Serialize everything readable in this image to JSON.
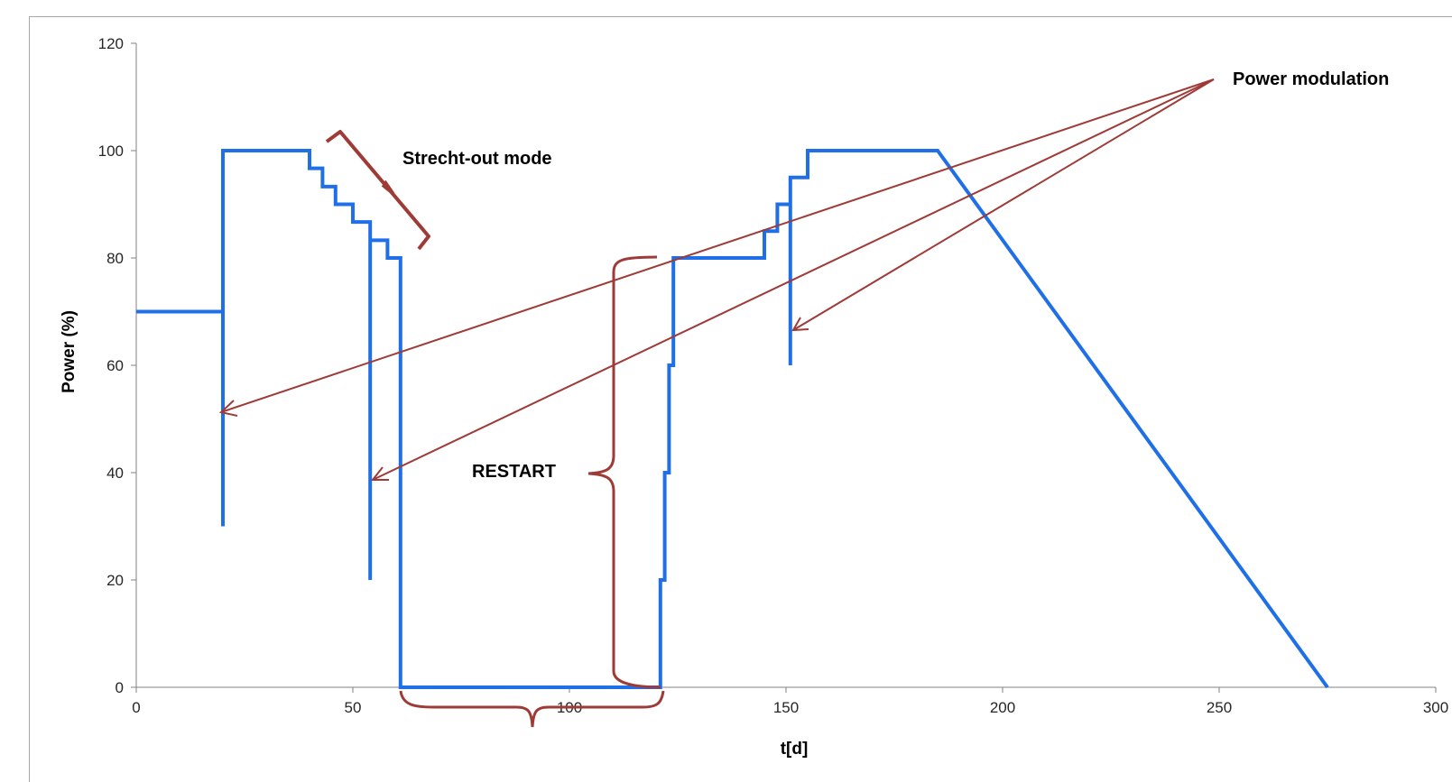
{
  "chart_data": {
    "type": "line",
    "title": "",
    "xlabel": "t[d]",
    "ylabel": "Power (%)",
    "xlim": [
      0,
      300
    ],
    "ylim": [
      0,
      120
    ],
    "xticks": [
      0,
      50,
      100,
      150,
      200,
      250,
      300
    ],
    "yticks": [
      0,
      20,
      40,
      60,
      80,
      100,
      120
    ],
    "grid": false,
    "legend": "none",
    "series": [
      {
        "color": "#1f6fe8",
        "x": [
          0,
          20,
          20,
          20,
          20,
          20,
          40,
          40,
          43,
          43,
          46,
          46,
          50,
          50,
          54,
          54,
          54,
          54,
          58,
          58,
          61,
          61,
          121,
          121,
          122,
          122,
          123,
          123,
          124,
          124,
          125,
          125,
          145,
          145,
          148,
          148,
          151,
          151,
          151,
          151,
          155,
          155,
          185,
          275
        ],
        "y": [
          70,
          70,
          30,
          70,
          100,
          100,
          100,
          96.7,
          96.7,
          93.3,
          93.3,
          90,
          90,
          86.7,
          86.7,
          20,
          86.7,
          83.3,
          83.3,
          80,
          80,
          0,
          0,
          20,
          20,
          40,
          40,
          60,
          60,
          80,
          80,
          80,
          80,
          85,
          85,
          90,
          90,
          60,
          90,
          95,
          95,
          100,
          100,
          0
        ]
      }
    ],
    "annotations": {
      "stretch_out": "Strecht-out mode",
      "restart": "RESTART",
      "power_modulation": "Power modulation"
    },
    "annotation_color": "#a0403c"
  }
}
